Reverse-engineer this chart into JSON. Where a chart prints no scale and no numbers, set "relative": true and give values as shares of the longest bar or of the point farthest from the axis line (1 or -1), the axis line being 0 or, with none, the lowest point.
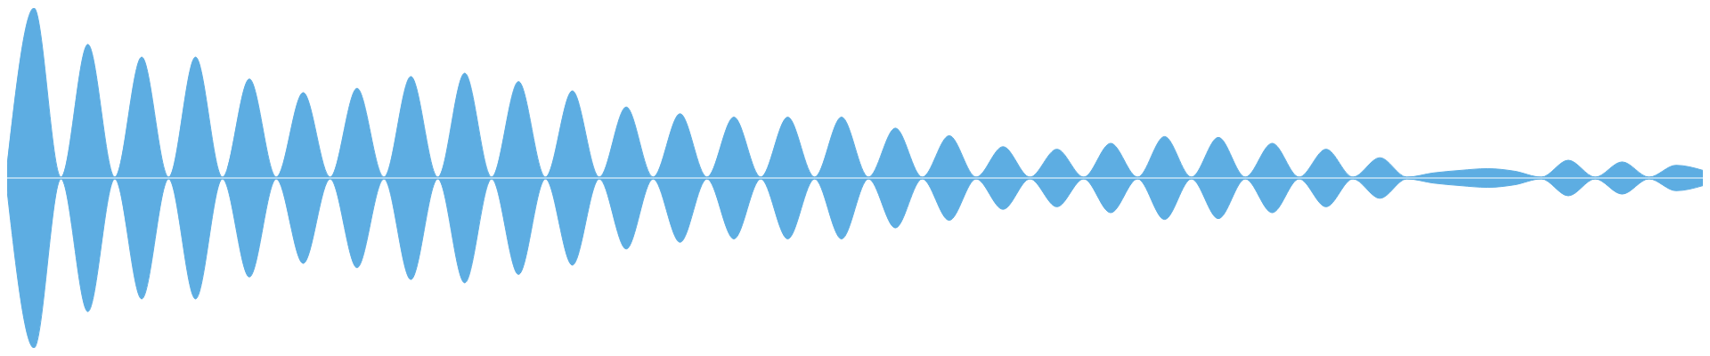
{
  "chart_data": [
    {
      "type": "area",
      "relative": true,
      "tick_labels": false,
      "categories": [
        null,
        null,
        null,
        null,
        null,
        null,
        null,
        null,
        null,
        null,
        null,
        null,
        null,
        null,
        null,
        null,
        null,
        null,
        null,
        null,
        null,
        null,
        null,
        null,
        null,
        null,
        null,
        null,
        null,
        null,
        null,
        null,
        null,
        null,
        null,
        null,
        null,
        null,
        null,
        null,
        null,
        null,
        null,
        null,
        null,
        null,
        null,
        null,
        null,
        null,
        null,
        null,
        null,
        null,
        null,
        null,
        null,
        null,
        null,
        null,
        null,
        null,
        null,
        null
      ],
      "series": [
        {
          "color": "#5dade2",
          "values": [
            0.07,
            1.0,
            0,
            0.785,
            0,
            0.71,
            0,
            0.71,
            0,
            0.58,
            0,
            0.5,
            0,
            0.525,
            0,
            0.595,
            0,
            0.615,
            0,
            0.565,
            0,
            0.51,
            0,
            0.415,
            0,
            0.375,
            0,
            0.355,
            0,
            0.355,
            0,
            0.355,
            0,
            0.29,
            0,
            0.245,
            0,
            0.18,
            0,
            0.165,
            0,
            0.2,
            0,
            0.24,
            0,
            0.235,
            0,
            0.2,
            0,
            0.165,
            0,
            0.115,
            0,
            0.025,
            0.04,
            0.05,
            0.035,
            0,
            0.1,
            0,
            0.09,
            0,
            0.07,
            0.04
          ]
        }
      ]
    },
    {
      "type": "area",
      "relative": true,
      "tick_labels": false,
      "categories": [
        null,
        null,
        null,
        null,
        null,
        null,
        null,
        null,
        null,
        null,
        null,
        null,
        null,
        null,
        null,
        null,
        null,
        null,
        null,
        null,
        null,
        null,
        null,
        null,
        null,
        null,
        null,
        null,
        null,
        null,
        null,
        null,
        null,
        null,
        null,
        null,
        null,
        null,
        null,
        null,
        null,
        null,
        null,
        null,
        null,
        null,
        null,
        null,
        null,
        null,
        null,
        null,
        null,
        null,
        null,
        null,
        null,
        null,
        null,
        null,
        null,
        null,
        null,
        null
      ],
      "series": [
        {
          "color": "#5dade2",
          "values": [
            -0.07,
            -1.0,
            0,
            -0.785,
            0,
            -0.71,
            0,
            -0.71,
            0,
            -0.58,
            0,
            -0.5,
            0,
            -0.525,
            0,
            -0.595,
            0,
            -0.615,
            0,
            -0.565,
            0,
            -0.51,
            0,
            -0.415,
            0,
            -0.375,
            0,
            -0.355,
            0,
            -0.355,
            0,
            -0.355,
            0,
            -0.29,
            0,
            -0.245,
            0,
            -0.18,
            0,
            -0.165,
            0,
            -0.2,
            0,
            -0.24,
            0,
            -0.235,
            0,
            -0.2,
            0,
            -0.165,
            0,
            -0.115,
            0,
            -0.025,
            -0.04,
            -0.05,
            -0.035,
            0,
            -0.1,
            0,
            -0.09,
            0,
            -0.07,
            -0.04
          ]
        }
      ]
    }
  ]
}
